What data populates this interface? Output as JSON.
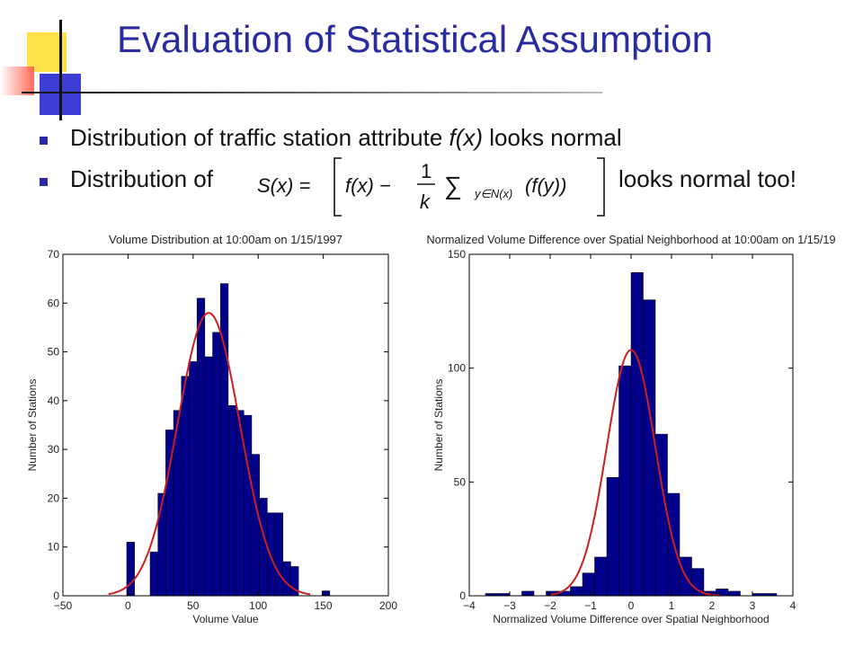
{
  "slide": {
    "title": "Evaluation of Statistical Assumption",
    "bullets": [
      {
        "prefix": "Distribution of traffic station attribute ",
        "italic": "f(x)",
        "suffix": " looks normal"
      },
      {
        "prefix": "Distribution of",
        "suffix": "looks normal too!"
      }
    ]
  },
  "formula": {
    "lhs": "S(x) =",
    "f_x": "f(x) −",
    "numerator": "1",
    "denominator": "k",
    "sum": "∑",
    "subscript": "y∈N(x)",
    "term": "(f(y))"
  },
  "colors": {
    "bar": "#00008b",
    "curve": "#cc1f1f",
    "title": "#2b2ba0",
    "bullet": "#2828a8"
  },
  "chart_data": [
    {
      "type": "bar",
      "title": "Volume Distribution at 10:00am on 1/15/1997",
      "xlabel": "Volume Value",
      "ylabel": "Number of Stations",
      "xlim": [
        -50,
        200
      ],
      "ylim": [
        0,
        70
      ],
      "xticks": [
        -50,
        0,
        50,
        100,
        150,
        200
      ],
      "yticks": [
        0,
        10,
        20,
        30,
        40,
        50,
        60,
        70
      ],
      "bin_width": 6,
      "bins": [
        {
          "x": 2,
          "v": 11
        },
        {
          "x": 20,
          "v": 9
        },
        {
          "x": 26,
          "v": 21
        },
        {
          "x": 32,
          "v": 34
        },
        {
          "x": 38,
          "v": 38
        },
        {
          "x": 44,
          "v": 45
        },
        {
          "x": 50,
          "v": 48
        },
        {
          "x": 56,
          "v": 61
        },
        {
          "x": 62,
          "v": 49
        },
        {
          "x": 68,
          "v": 54
        },
        {
          "x": 74,
          "v": 64
        },
        {
          "x": 80,
          "v": 39
        },
        {
          "x": 86,
          "v": 38
        },
        {
          "x": 92,
          "v": 37
        },
        {
          "x": 98,
          "v": 29
        },
        {
          "x": 104,
          "v": 20
        },
        {
          "x": 110,
          "v": 17
        },
        {
          "x": 116,
          "v": 17
        },
        {
          "x": 122,
          "v": 7
        },
        {
          "x": 128,
          "v": 6
        },
        {
          "x": 152,
          "v": 1
        }
      ],
      "curve": {
        "mean": 62,
        "sd": 24,
        "peak": 58,
        "range": [
          -15,
          140
        ]
      },
      "grid": false
    },
    {
      "type": "bar",
      "title": "Normalized Volume Difference over Spatial Neighborhood at 10:00am on 1/15/19",
      "xlabel": "Normalized Volume Difference over Spatial Neighborhood",
      "ylabel": "Number of Stations",
      "xlim": [
        -4,
        4
      ],
      "ylim": [
        0,
        150
      ],
      "xticks": [
        -4,
        -3,
        -2,
        -1,
        0,
        1,
        2,
        3,
        4
      ],
      "yticks": [
        0,
        50,
        100,
        150
      ],
      "bin_width": 0.3,
      "bins": [
        {
          "x": -3.45,
          "v": 1
        },
        {
          "x": -3.15,
          "v": 1
        },
        {
          "x": -2.55,
          "v": 2
        },
        {
          "x": -1.95,
          "v": 2
        },
        {
          "x": -1.65,
          "v": 2
        },
        {
          "x": -1.35,
          "v": 4
        },
        {
          "x": -1.05,
          "v": 10
        },
        {
          "x": -0.75,
          "v": 17
        },
        {
          "x": -0.45,
          "v": 52
        },
        {
          "x": -0.15,
          "v": 101
        },
        {
          "x": 0.15,
          "v": 142
        },
        {
          "x": 0.45,
          "v": 130
        },
        {
          "x": 0.75,
          "v": 71
        },
        {
          "x": 1.05,
          "v": 45
        },
        {
          "x": 1.35,
          "v": 17
        },
        {
          "x": 1.65,
          "v": 12
        },
        {
          "x": 1.95,
          "v": 2
        },
        {
          "x": 2.25,
          "v": 3
        },
        {
          "x": 2.55,
          "v": 2
        },
        {
          "x": 3.15,
          "v": 1
        },
        {
          "x": 3.45,
          "v": 1
        }
      ],
      "curve": {
        "mean": 0,
        "sd": 0.6,
        "peak": 108,
        "range": [
          -2.0,
          2.2
        ]
      },
      "grid": false
    }
  ]
}
